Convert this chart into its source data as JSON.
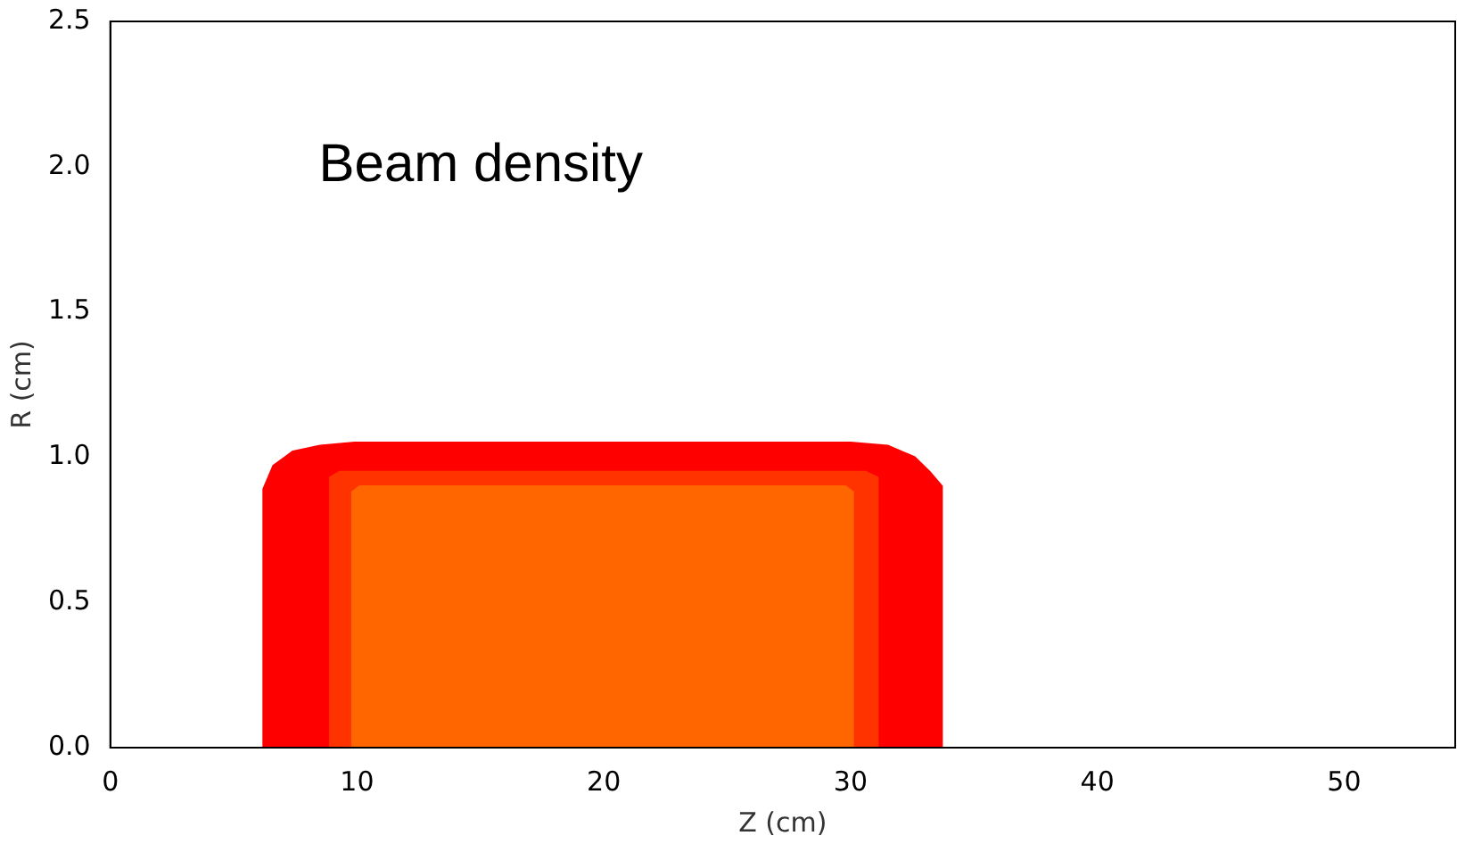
{
  "chart_data": {
    "type": "area",
    "xlabel": "Z (cm)",
    "ylabel": "R (cm)",
    "annotations": [
      "Beam density"
    ],
    "xlim": [
      0,
      54.5
    ],
    "xticks": [
      0,
      10,
      20,
      30,
      40,
      50
    ],
    "ylim": [
      0,
      2.5
    ],
    "yticks": [
      {
        "value": 0,
        "label": "0.0"
      },
      0.5,
      {
        "value": 1,
        "label": "1.0"
      },
      1.5,
      {
        "value": 2,
        "label": "2.0"
      },
      2.5
    ],
    "grid": false,
    "legend": false,
    "series": [
      {
        "color": "#ff0000",
        "x": [
          6.2,
          6.2,
          6.6,
          7.4,
          8.5,
          9.9,
          30,
          31.5,
          32.6,
          33.2,
          33.7,
          33.7
        ],
        "values": [
          0,
          0.89,
          0.97,
          1.02,
          1.04,
          1.05,
          1.05,
          1.04,
          1.0,
          0.95,
          0.9,
          0
        ]
      },
      {
        "color": "#ff3300",
        "x": [
          8.9,
          8.9,
          9.3,
          30.6,
          31.1,
          31.1
        ],
        "values": [
          0,
          0.93,
          0.95,
          0.95,
          0.93,
          0
        ]
      },
      {
        "color": "#ff6600",
        "x": [
          9.8,
          9.8,
          10.1,
          29.8,
          30.1,
          30.1
        ],
        "values": [
          0,
          0.88,
          0.9,
          0.9,
          0.88,
          0
        ]
      }
    ]
  }
}
